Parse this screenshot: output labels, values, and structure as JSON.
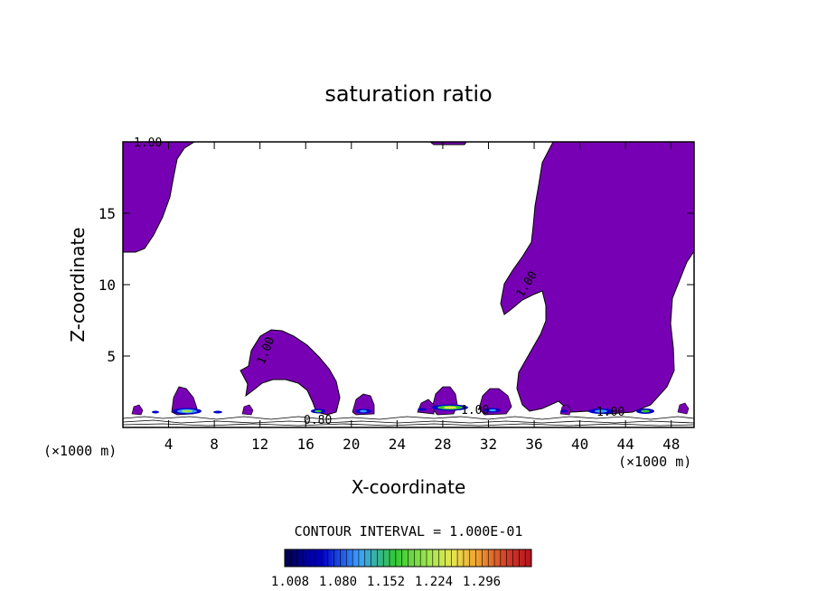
{
  "chart_data": {
    "type": "contour",
    "title": "saturation ratio",
    "xlabel": "X-coordinate",
    "ylabel": "Z-coordinate",
    "x_unit_left": "(×1000 m)",
    "x_unit_right": "(×1000 m)",
    "xlim": [
      0,
      50
    ],
    "ylim": [
      0,
      20
    ],
    "x_ticks": [
      4,
      8,
      12,
      16,
      20,
      24,
      28,
      32,
      36,
      40,
      44,
      48
    ],
    "y_ticks": [
      5,
      10,
      15
    ],
    "contour_labels": [
      "1.00",
      "1.00",
      "1.00",
      "1.00",
      "1.00",
      "0.80"
    ],
    "contour_interval_text": "CONTOUR INTERVAL = 1.000E-01",
    "colorbar": {
      "tick_labels": [
        "1.008",
        "1.080",
        "1.152",
        "1.224",
        "1.296"
      ],
      "range": [
        1.008,
        1.296
      ]
    },
    "fill_color": "#7800b4",
    "colors": [
      "#000050",
      "#0000c8",
      "#3ca0ff",
      "#32c832",
      "#a0e650",
      "#e6e650",
      "#f0a030",
      "#d23c28",
      "#b4141e"
    ]
  }
}
